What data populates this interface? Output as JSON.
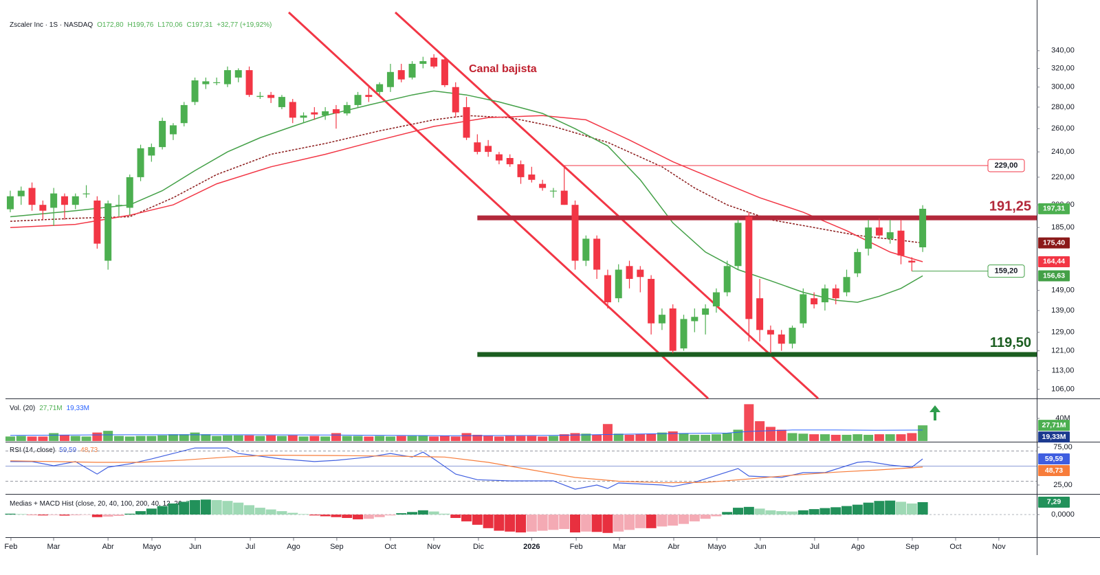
{
  "chart_data": [
    {
      "type": "candlestick",
      "title": "Zscaler Inc · 1S · NASDAQ",
      "legend_values": [
        "O172,80",
        "H199,76",
        "L170,06",
        "C197,31",
        "+32,77 (+19,92%)"
      ],
      "x": [
        0,
        1,
        2,
        3,
        4,
        5,
        6,
        7,
        8,
        9,
        10,
        11,
        12,
        13,
        14,
        15,
        16,
        17,
        18,
        19,
        20,
        21,
        22,
        23,
        24,
        25,
        26,
        27,
        28,
        29,
        30,
        31,
        32,
        33,
        34,
        35,
        36,
        37,
        38,
        39,
        40,
        41,
        42,
        43,
        44,
        45,
        46,
        47,
        48,
        49,
        50,
        51,
        52,
        53,
        54,
        55,
        56,
        57,
        58,
        59,
        60,
        61,
        62,
        63,
        64,
        65,
        66,
        67,
        68,
        69,
        70,
        71,
        72,
        73,
        74,
        75,
        76,
        77,
        78,
        79,
        80,
        81,
        82,
        83,
        84
      ],
      "open": [
        197,
        206,
        212,
        200,
        198,
        206,
        200,
        208,
        203,
        165,
        200,
        198,
        220,
        237,
        244,
        255,
        265,
        285,
        303,
        305,
        303,
        310,
        318,
        290,
        292,
        280,
        285,
        270,
        275,
        272,
        278,
        274,
        282,
        292,
        295,
        300,
        318,
        310,
        325,
        332,
        330,
        300,
        280,
        248,
        245,
        238,
        235,
        230,
        222,
        215,
        210,
        210,
        200,
        165,
        178,
        157,
        145,
        162,
        160,
        155,
        133,
        140,
        122,
        134,
        137,
        141,
        148,
        162,
        192,
        145,
        130,
        128,
        124,
        133,
        145,
        143,
        150,
        148,
        158,
        172,
        185,
        178,
        183,
        165,
        172.8
      ],
      "high": [
        210,
        213,
        216,
        203,
        212,
        208,
        208,
        214,
        206,
        203,
        207,
        222,
        246,
        247,
        270,
        265,
        285,
        310,
        310,
        310,
        322,
        320,
        322,
        295,
        295,
        292,
        288,
        275,
        280,
        280,
        282,
        285,
        295,
        300,
        305,
        325,
        325,
        328,
        333,
        336,
        332,
        305,
        290,
        255,
        250,
        240,
        238,
        233,
        228,
        218,
        212,
        229,
        203,
        180,
        180,
        160,
        163,
        165,
        162,
        157,
        140,
        142,
        137,
        140,
        142,
        150,
        165,
        190,
        195,
        155,
        132,
        130,
        132,
        150,
        148,
        152,
        152,
        160,
        172,
        190,
        191,
        190,
        190,
        167,
        199.76
      ],
      "low": [
        195,
        200,
        196,
        190,
        186,
        190,
        197,
        205,
        172,
        160,
        192,
        193,
        217,
        232,
        242,
        250,
        262,
        282,
        298,
        302,
        300,
        305,
        290,
        288,
        284,
        278,
        265,
        265,
        268,
        268,
        260,
        272,
        280,
        285,
        292,
        295,
        305,
        308,
        320,
        320,
        300,
        270,
        250,
        238,
        236,
        230,
        228,
        215,
        216,
        210,
        205,
        200,
        160,
        162,
        155,
        140,
        143,
        150,
        148,
        128,
        130,
        120,
        121,
        129,
        128,
        138,
        146,
        160,
        125,
        125,
        120,
        121,
        122,
        131,
        140,
        139,
        142,
        146,
        156,
        168,
        178,
        175,
        163,
        159.2,
        170.06
      ],
      "close": [
        206,
        210,
        200,
        196,
        208,
        200,
        206,
        208,
        175,
        201,
        200,
        220,
        243,
        244,
        267,
        263,
        282,
        307,
        306,
        305,
        318,
        318,
        292,
        291,
        289,
        290,
        270,
        272,
        273,
        276,
        274,
        282,
        292,
        290,
        303,
        316,
        308,
        325,
        328,
        322,
        302,
        275,
        252,
        240,
        240,
        233,
        230,
        220,
        218,
        212,
        210,
        200,
        165,
        178,
        160,
        143,
        160,
        155,
        156,
        133,
        137,
        121,
        135,
        136,
        140,
        148,
        162,
        188,
        135,
        130,
        128,
        124,
        131,
        147,
        142,
        150,
        145,
        156,
        170,
        185,
        180,
        182,
        168,
        164,
        197.31
      ],
      "up_color": "#4caf50",
      "down_color": "#f23645",
      "last_value_label": "197,31",
      "log_scale": true,
      "ylim": [
        102.7,
        388
      ],
      "yticks": [
        {
          "value": 106,
          "label": "106,00"
        },
        {
          "value": 113,
          "label": "113,00"
        },
        {
          "value": 121,
          "label": "121,00"
        },
        {
          "value": 129,
          "label": "129,00"
        },
        {
          "value": 139,
          "label": "139,00"
        },
        {
          "value": 149,
          "label": "149,00"
        },
        {
          "value": 185,
          "label": "185,00"
        },
        {
          "value": 200,
          "label": "200,00"
        },
        {
          "value": 220,
          "label": "220,00"
        },
        {
          "value": 240,
          "label": "240,00"
        },
        {
          "value": 260,
          "label": "260,00"
        },
        {
          "value": 280,
          "label": "280,00"
        },
        {
          "value": 300,
          "label": "300,00"
        },
        {
          "value": 320,
          "label": "320,00"
        },
        {
          "value": 340,
          "label": "340,00"
        }
      ],
      "xlim": [
        -0.44,
        94.5
      ],
      "xticks": [
        {
          "value": 0.06,
          "label": "Feb"
        },
        {
          "value": 3.99,
          "label": "Mar"
        },
        {
          "value": 9,
          "label": "Abr"
        },
        {
          "value": 13.04,
          "label": "Mayo"
        },
        {
          "value": 17.03,
          "label": "Jun"
        },
        {
          "value": 22.1,
          "label": "Jul"
        },
        {
          "value": 26.08,
          "label": "Ago"
        },
        {
          "value": 30.06,
          "label": "Sep"
        },
        {
          "value": 35,
          "label": "Oct"
        },
        {
          "value": 38.99,
          "label": "Nov"
        },
        {
          "value": 43.1,
          "label": "Dic"
        },
        {
          "value": 48,
          "label": "2026"
        },
        {
          "value": 52.1,
          "label": "Feb"
        },
        {
          "value": 56.08,
          "label": "Mar"
        },
        {
          "value": 61.08,
          "label": "Abr"
        },
        {
          "value": 65.06,
          "label": "Mayo"
        },
        {
          "value": 69.05,
          "label": "Jun"
        },
        {
          "value": 74.05,
          "label": "Jul"
        },
        {
          "value": 78.04,
          "label": "Ago"
        },
        {
          "value": 83.04,
          "label": "Sep"
        },
        {
          "value": 87.03,
          "label": "Oct"
        },
        {
          "value": 91.01,
          "label": "Nov"
        }
      ],
      "moving_averages": [
        {
          "color": "#8b1a1a",
          "dashed": true,
          "value_label": "175,40",
          "x": [
            0,
            6,
            11,
            15,
            19,
            24,
            29,
            34,
            39,
            42,
            46,
            50,
            55,
            60,
            63,
            66,
            70,
            74,
            78,
            82,
            84
          ],
          "values": [
            189,
            191,
            192,
            205,
            222,
            238,
            247,
            258,
            268,
            272,
            270,
            262,
            248,
            228,
            212,
            200,
            190,
            185,
            180,
            177,
            175.4
          ]
        },
        {
          "color": "#f23645",
          "dashed": false,
          "value_label": "164,44",
          "x": [
            0,
            6,
            11,
            15,
            19,
            24,
            29,
            34,
            39,
            44,
            49,
            53,
            57,
            61,
            65,
            69,
            73,
            77,
            81,
            84
          ],
          "values": [
            185,
            187,
            193,
            200,
            215,
            228,
            238,
            250,
            262,
            270,
            272,
            268,
            250,
            232,
            218,
            205,
            195,
            183,
            170,
            164.44
          ]
        },
        {
          "color": "#43a047",
          "dashed": false,
          "value_label": "156,63",
          "x": [
            0,
            6,
            11,
            14,
            17,
            20,
            23,
            26,
            29,
            33,
            37,
            39,
            42,
            45,
            49,
            52,
            55,
            58,
            61,
            64,
            67,
            70,
            73,
            76,
            78,
            80,
            82,
            84
          ],
          "values": [
            192,
            196,
            200,
            210,
            225,
            240,
            252,
            262,
            272,
            282,
            292,
            296,
            292,
            285,
            274,
            260,
            245,
            218,
            188,
            170,
            160,
            154,
            148,
            144,
            143,
            146,
            150,
            156.63
          ]
        }
      ],
      "levels": [
        {
          "value": 229,
          "label": "229,00",
          "x_start": 51,
          "style": "thin",
          "color": "#f23645"
        },
        {
          "value": 191.25,
          "label": "191,25",
          "x_start": 43,
          "style": "zone",
          "color": "#b2283a"
        },
        {
          "value": 159.2,
          "label": "159,20",
          "x_start": 83,
          "style": "thin",
          "color": "#43a047"
        },
        {
          "value": 119.5,
          "label": "119,50",
          "x_start": 43,
          "style": "zone",
          "color": "#1b5e20"
        }
      ],
      "annotation": "Canal bajista"
    },
    {
      "type": "bar",
      "title": "Vol. (20)",
      "legend_values": [
        "27,71M",
        "19,33M"
      ],
      "values": [
        8,
        9,
        8,
        8,
        14,
        11,
        9,
        8,
        15,
        18,
        9,
        8,
        9,
        9,
        10,
        12,
        12,
        15,
        12,
        9,
        10,
        10,
        10,
        9,
        10,
        9,
        10,
        8,
        9,
        8,
        14,
        9,
        9,
        8,
        9,
        8,
        9,
        9,
        9,
        8,
        9,
        8,
        14,
        11,
        9,
        8,
        9,
        9,
        9,
        8,
        9,
        12,
        14,
        13,
        11,
        30,
        13,
        11,
        12,
        13,
        15,
        17,
        14,
        11,
        11,
        12,
        14,
        20,
        65,
        35,
        25,
        20,
        14,
        13,
        12,
        12,
        11,
        11,
        12,
        11,
        12,
        12,
        12,
        14,
        27.71
      ],
      "last_value_label": "27,71M",
      "average": {
        "color": "#2962ff",
        "value_label": "19,33M",
        "x": [
          0,
          10,
          20,
          30,
          40,
          50,
          60,
          66,
          68,
          72,
          76,
          80,
          84
        ],
        "values": [
          10,
          11,
          11,
          10.5,
          9.5,
          10,
          13,
          14,
          17,
          19.5,
          19.5,
          19,
          19.33
        ]
      },
      "ylim": [
        0,
        71.5
      ],
      "yticks": [
        {
          "value": 40,
          "label": "40M"
        }
      ]
    },
    {
      "type": "line",
      "title": "RSI (14, close)",
      "legend_values": [
        "59,59",
        "48,73"
      ],
      "series": [
        {
          "color": "#3f5ee0",
          "value_label": "59,59",
          "x": [
            0,
            2,
            4,
            6,
            8,
            9,
            11,
            13,
            15,
            17,
            20,
            21,
            22,
            25,
            28,
            30,
            33,
            35,
            37,
            38,
            39,
            41,
            43,
            46,
            50,
            52,
            54,
            55,
            56,
            60,
            61,
            63,
            65,
            67,
            68,
            71,
            73,
            75,
            78,
            79,
            81,
            83,
            84
          ],
          "values": [
            56,
            56,
            50.5,
            56,
            39.5,
            48.6,
            53,
            59.5,
            66.8,
            74,
            74,
            66.8,
            65,
            59.5,
            56,
            57.7,
            62,
            66.8,
            62,
            68.6,
            59.5,
            39.5,
            32,
            30.5,
            30.5,
            19.5,
            25,
            20.5,
            27.7,
            25,
            23,
            28.6,
            37.7,
            46.8,
            36.8,
            35,
            41.4,
            41.4,
            55,
            56,
            51.4,
            48.6,
            59.59
          ]
        },
        {
          "color": "#f77c3a",
          "value_label": "48,73",
          "x": [
            0,
            8,
            12,
            16,
            20,
            24,
            30,
            36,
            40,
            44,
            48,
            52,
            56,
            60,
            64,
            68,
            72,
            76,
            80,
            84
          ],
          "values": [
            57,
            55,
            55,
            58,
            62,
            64.5,
            64,
            63,
            62,
            55,
            45,
            35,
            30,
            28,
            28.5,
            33,
            38,
            42,
            45,
            48.73
          ]
        }
      ],
      "bands": [
        70,
        50,
        30
      ],
      "ylim": [
        14.1,
        80.5
      ],
      "yticks": [
        {
          "value": 75,
          "label": "75,00"
        },
        {
          "value": 25,
          "label": "25,00"
        }
      ]
    },
    {
      "type": "macd",
      "title": "Medias + MACD Hist (close, 20, 40, 100, 200, 40, 12, 26",
      "legend_values": [
        "7,29"
      ],
      "values": [
        0.5,
        0.3,
        -0.2,
        -0.5,
        -0.3,
        -0.6,
        -0.4,
        -0.2,
        -1.5,
        -1.2,
        -0.8,
        0.5,
        2,
        3.5,
        5,
        6.5,
        7.5,
        8.5,
        8.8,
        8.5,
        8,
        7,
        5.5,
        4,
        3,
        2,
        1,
        0.3,
        -0.5,
        -1,
        -1.5,
        -2,
        -2.8,
        -2.5,
        -1.5,
        -0.5,
        0.8,
        1.5,
        2.5,
        1.8,
        0.5,
        -2,
        -4,
        -6,
        -8,
        -9.5,
        -10,
        -10.5,
        -10,
        -9.5,
        -9,
        -8.5,
        -10.5,
        -10,
        -10.2,
        -10.8,
        -10,
        -9,
        -8,
        -8,
        -7,
        -6.5,
        -5.5,
        -4,
        -2.5,
        -1,
        1.5,
        4,
        4.5,
        3.5,
        2.5,
        2,
        1.8,
        2.5,
        3.2,
        3.8,
        4.3,
        5,
        5.8,
        7,
        8,
        8.2,
        7.5,
        6.5,
        7.29
      ],
      "colors": [
        "#22915a",
        "#9fd9b5",
        "#e8303f",
        "#f4aab4"
      ],
      "last_value_label": "7,29",
      "ylim": [
        -12.5,
        10.9
      ],
      "yticks": [
        {
          "value": 0,
          "label": "0,0000"
        }
      ]
    }
  ]
}
